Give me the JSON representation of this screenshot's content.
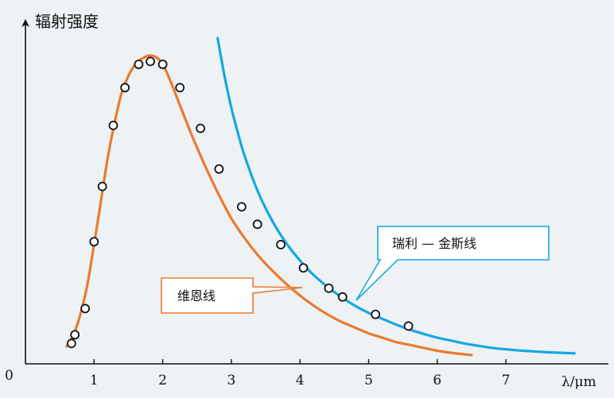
{
  "chart_data": {
    "type": "line",
    "ylabel": "辐射强度",
    "xlabel": "λ/μm",
    "origin_label": "0",
    "xlim": [
      0,
      8.5
    ],
    "ylim": [
      0,
      1.12
    ],
    "x_ticks": [
      1,
      2,
      3,
      4,
      5,
      6,
      7
    ],
    "x_tick_labels": [
      "1",
      "2",
      "3",
      "4",
      "5",
      "6",
      "7"
    ],
    "grid": false,
    "colors": {
      "wien": "#e97b2e",
      "rayleigh": "#15a8e0",
      "points": "#111111",
      "axis": "#111111"
    },
    "series": [
      {
        "name": "维恩线",
        "kind": "line",
        "x": [
          0.6,
          0.7,
          0.8,
          0.9,
          1.0,
          1.1,
          1.2,
          1.3,
          1.4,
          1.5,
          1.6,
          1.7,
          1.8,
          1.9,
          2.0,
          2.1,
          2.2,
          2.4,
          2.6,
          2.8,
          3.0,
          3.2,
          3.4,
          3.6,
          3.8,
          4.0,
          4.2,
          4.4,
          4.6,
          4.8,
          5.0,
          5.2,
          5.4,
          5.6,
          5.8,
          6.0,
          6.2,
          6.5
        ],
        "y": [
          0.06,
          0.1,
          0.17,
          0.27,
          0.41,
          0.56,
          0.71,
          0.83,
          0.93,
          0.99,
          1.03,
          1.05,
          1.06,
          1.055,
          1.03,
          0.98,
          0.92,
          0.8,
          0.69,
          0.59,
          0.5,
          0.43,
          0.37,
          0.32,
          0.275,
          0.235,
          0.2,
          0.17,
          0.145,
          0.125,
          0.105,
          0.09,
          0.075,
          0.065,
          0.055,
          0.045,
          0.038,
          0.03
        ]
      },
      {
        "name": "瑞利 — 金斯线",
        "kind": "line",
        "x": [
          2.8,
          2.9,
          3.0,
          3.1,
          3.2,
          3.4,
          3.6,
          3.8,
          4.0,
          4.2,
          4.4,
          4.6,
          4.8,
          5.0,
          5.2,
          5.4,
          5.6,
          5.8,
          6.0,
          6.2,
          6.4,
          6.6,
          6.8,
          7.0,
          7.2,
          7.4,
          7.6,
          7.8,
          8.0
        ],
        "y": [
          1.12,
          0.99,
          0.88,
          0.79,
          0.71,
          0.585,
          0.49,
          0.415,
          0.355,
          0.305,
          0.265,
          0.23,
          0.2,
          0.175,
          0.155,
          0.135,
          0.118,
          0.103,
          0.09,
          0.08,
          0.07,
          0.062,
          0.055,
          0.05,
          0.046,
          0.043,
          0.04,
          0.038,
          0.036
        ]
      },
      {
        "name": "",
        "kind": "scatter",
        "x": [
          0.67,
          0.72,
          0.87,
          1.0,
          1.12,
          1.28,
          1.45,
          1.65,
          1.82,
          2.0,
          2.25,
          2.55,
          2.82,
          3.15,
          3.38,
          3.72,
          4.05,
          4.42,
          4.62,
          5.1,
          5.58
        ],
        "y": [
          0.07,
          0.1,
          0.19,
          0.42,
          0.61,
          0.82,
          0.95,
          1.03,
          1.04,
          1.03,
          0.95,
          0.81,
          0.67,
          0.54,
          0.48,
          0.41,
          0.33,
          0.26,
          0.23,
          0.17,
          0.13
        ]
      }
    ],
    "callouts": [
      {
        "target": "维恩线",
        "text": "维恩线"
      },
      {
        "target": "瑞利 — 金斯线",
        "text": "瑞利 — 金斯线"
      }
    ]
  }
}
